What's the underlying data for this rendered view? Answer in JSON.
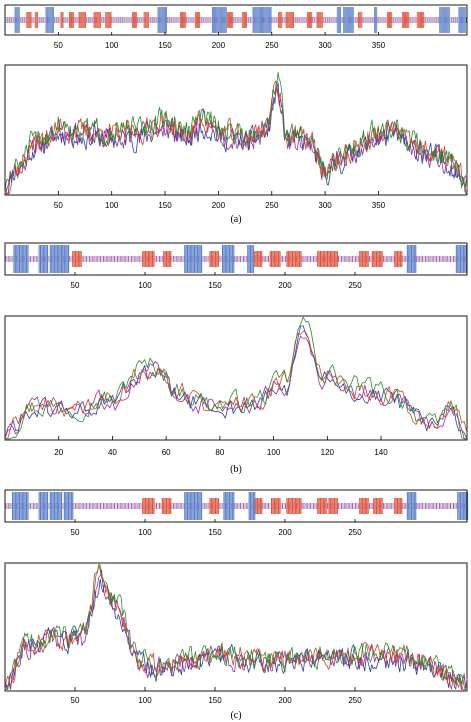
{
  "colors": {
    "helix": "#5b7fc9",
    "strand": "#e0553d",
    "coil": "#7a4aa8",
    "series": [
      "#2d3fa0",
      "#9a2f9a",
      "#d2432b",
      "#2e8b2e"
    ]
  },
  "chart_data": [
    {
      "panel": "a",
      "label": "(a)",
      "type": "line",
      "length": 433,
      "xticks": [
        50,
        100,
        150,
        200,
        250,
        300,
        350
      ],
      "strip_xticks": [
        50,
        100,
        150,
        200,
        250,
        300,
        350
      ],
      "grid": false,
      "legend": "none",
      "helices": [
        [
          9,
          13
        ],
        [
          38,
          45
        ],
        [
          143,
          151
        ],
        [
          194,
          207
        ],
        [
          232,
          249
        ],
        [
          311,
          314
        ],
        [
          317,
          326
        ],
        [
          346,
          348
        ],
        [
          407,
          416
        ],
        [
          425,
          431
        ]
      ],
      "strands": [
        [
          20,
          24
        ],
        [
          28,
          30
        ],
        [
          52,
          54
        ],
        [
          60,
          64
        ],
        [
          69,
          75
        ],
        [
          83,
          89
        ],
        [
          94,
          99
        ],
        [
          119,
          123
        ],
        [
          130,
          134
        ],
        [
          164,
          169
        ],
        [
          178,
          182
        ],
        [
          208,
          213
        ],
        [
          222,
          226
        ],
        [
          256,
          259
        ],
        [
          263,
          270
        ],
        [
          283,
          287
        ],
        [
          292,
          297
        ],
        [
          331,
          334
        ],
        [
          358,
          362
        ],
        [
          372,
          378
        ],
        [
          386,
          392
        ]
      ],
      "peaks": [
        [
          0,
          0.05
        ],
        [
          10,
          0.22
        ],
        [
          30,
          0.44
        ],
        [
          55,
          0.56
        ],
        [
          75,
          0.52
        ],
        [
          100,
          0.5
        ],
        [
          125,
          0.52
        ],
        [
          150,
          0.6
        ],
        [
          170,
          0.5
        ],
        [
          185,
          0.62
        ],
        [
          205,
          0.52
        ],
        [
          225,
          0.48
        ],
        [
          245,
          0.55
        ],
        [
          255,
          0.92
        ],
        [
          265,
          0.48
        ],
        [
          285,
          0.46
        ],
        [
          300,
          0.2
        ],
        [
          315,
          0.3
        ],
        [
          335,
          0.44
        ],
        [
          350,
          0.5
        ],
        [
          365,
          0.55
        ],
        [
          380,
          0.42
        ],
        [
          400,
          0.35
        ],
        [
          415,
          0.3
        ],
        [
          425,
          0.2
        ],
        [
          433,
          0.08
        ]
      ],
      "seeds": [
        11,
        23,
        37,
        51
      ]
    },
    {
      "panel": "b",
      "label": "(b)",
      "type": "line",
      "length": 172,
      "xticks": [
        20,
        40,
        60,
        80,
        100,
        120,
        140
      ],
      "strip_xticks": [
        50,
        100,
        150,
        200,
        250
      ],
      "strip_length": 330,
      "grid": false,
      "legend": "none",
      "helices": [
        [
          6,
          16
        ],
        [
          24,
          30
        ],
        [
          32,
          40
        ],
        [
          40,
          45
        ],
        [
          128,
          140
        ],
        [
          155,
          163
        ],
        [
          173,
          177
        ],
        [
          287,
          293
        ],
        [
          322,
          329
        ]
      ],
      "strands": [
        [
          48,
          54
        ],
        [
          98,
          106
        ],
        [
          113,
          118
        ],
        [
          146,
          152
        ],
        [
          178,
          183
        ],
        [
          189,
          196
        ],
        [
          201,
          211
        ],
        [
          223,
          229
        ],
        [
          230,
          237
        ],
        [
          253,
          259
        ],
        [
          262,
          269
        ],
        [
          278,
          283
        ]
      ],
      "peaks": [
        [
          0,
          0.05
        ],
        [
          10,
          0.28
        ],
        [
          25,
          0.28
        ],
        [
          40,
          0.34
        ],
        [
          50,
          0.6
        ],
        [
          56,
          0.62
        ],
        [
          65,
          0.4
        ],
        [
          78,
          0.3
        ],
        [
          92,
          0.32
        ],
        [
          105,
          0.5
        ],
        [
          111,
          1.0
        ],
        [
          118,
          0.58
        ],
        [
          130,
          0.45
        ],
        [
          145,
          0.38
        ],
        [
          160,
          0.1
        ],
        [
          166,
          0.3
        ],
        [
          172,
          0.05
        ]
      ],
      "seeds": [
        61,
        73,
        89,
        97
      ]
    },
    {
      "panel": "c",
      "label": "(c)",
      "type": "line",
      "length": 330,
      "xticks": [
        50,
        100,
        150,
        200,
        250
      ],
      "strip_xticks": [
        50,
        100,
        150,
        200,
        250
      ],
      "grid": false,
      "legend": "none",
      "helices": [
        [
          5,
          16
        ],
        [
          24,
          30
        ],
        [
          32,
          40
        ],
        [
          42,
          48
        ],
        [
          128,
          140
        ],
        [
          156,
          163
        ],
        [
          174,
          178
        ],
        [
          287,
          293
        ],
        [
          323,
          330
        ]
      ],
      "strands": [
        [
          98,
          106
        ],
        [
          112,
          118
        ],
        [
          146,
          152
        ],
        [
          178,
          183
        ],
        [
          190,
          196
        ],
        [
          201,
          211
        ],
        [
          223,
          229
        ],
        [
          231,
          237
        ],
        [
          253,
          259
        ],
        [
          263,
          269
        ],
        [
          278,
          283
        ]
      ],
      "peaks": [
        [
          0,
          0.05
        ],
        [
          15,
          0.4
        ],
        [
          35,
          0.45
        ],
        [
          55,
          0.45
        ],
        [
          68,
          0.98
        ],
        [
          80,
          0.7
        ],
        [
          95,
          0.28
        ],
        [
          110,
          0.2
        ],
        [
          135,
          0.28
        ],
        [
          155,
          0.3
        ],
        [
          185,
          0.25
        ],
        [
          215,
          0.28
        ],
        [
          240,
          0.3
        ],
        [
          260,
          0.3
        ],
        [
          285,
          0.28
        ],
        [
          305,
          0.22
        ],
        [
          320,
          0.1
        ],
        [
          330,
          0.05
        ]
      ],
      "seeds": [
        103,
        113,
        127,
        131
      ]
    }
  ]
}
